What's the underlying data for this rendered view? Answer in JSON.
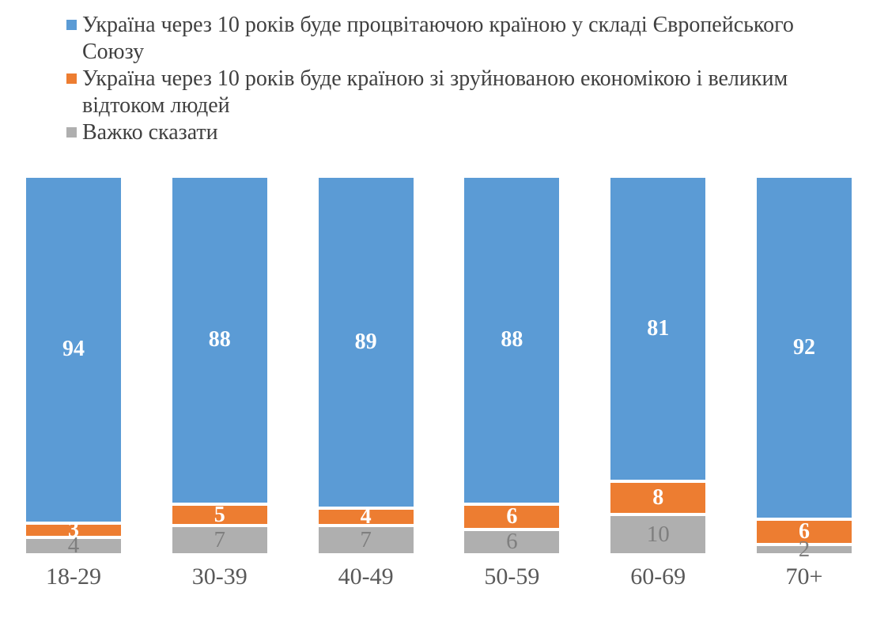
{
  "legend": {
    "items": [
      {
        "label": "Україна через 10 років буде процвітаючою країною у складі Європейського Союзу",
        "lines": [
          "Україна через 10 років буде процвітаючою країною у складі Європейського",
          "Союзу"
        ],
        "color": "#5B9BD5"
      },
      {
        "label": "Україна через 10 років буде країною зі зруйнованою економікою і великим відтоком людей",
        "lines": [
          "Україна через 10 років буде країною зі зруйнованою економікою і великим",
          "відтоком людей"
        ],
        "color": "#ED7D31"
      },
      {
        "label": "Важко сказати",
        "lines": [
          "Важко сказати"
        ],
        "color": "#AFAFAF"
      }
    ]
  },
  "chart_data": {
    "type": "bar",
    "stacked": true,
    "percent_scale": true,
    "title": "",
    "xlabel": "",
    "ylabel": "",
    "ylim": [
      0,
      100
    ],
    "grid": false,
    "axes_visible": false,
    "legend_position": "top-left",
    "categories": [
      "18-29",
      "30-39",
      "40-49",
      "50-59",
      "60-69",
      "70+"
    ],
    "series": [
      {
        "name": "Україна через 10 років буде процвітаючою країною у складі Європейського Союзу",
        "color": "#5B9BD5",
        "label_color": "#ffffff",
        "values": [
          94,
          88,
          89,
          88,
          81,
          92
        ]
      },
      {
        "name": "Україна через 10 років буде країною зі зруйнованою економікою і великим відтоком людей",
        "color": "#ED7D31",
        "label_color": "#ffffff",
        "values": [
          3,
          5,
          4,
          6,
          8,
          6
        ]
      },
      {
        "name": "Важко сказати",
        "color": "#AFAFAF",
        "label_color": "#7f7f7f",
        "values": [
          4,
          7,
          7,
          6,
          10,
          2
        ]
      }
    ]
  }
}
